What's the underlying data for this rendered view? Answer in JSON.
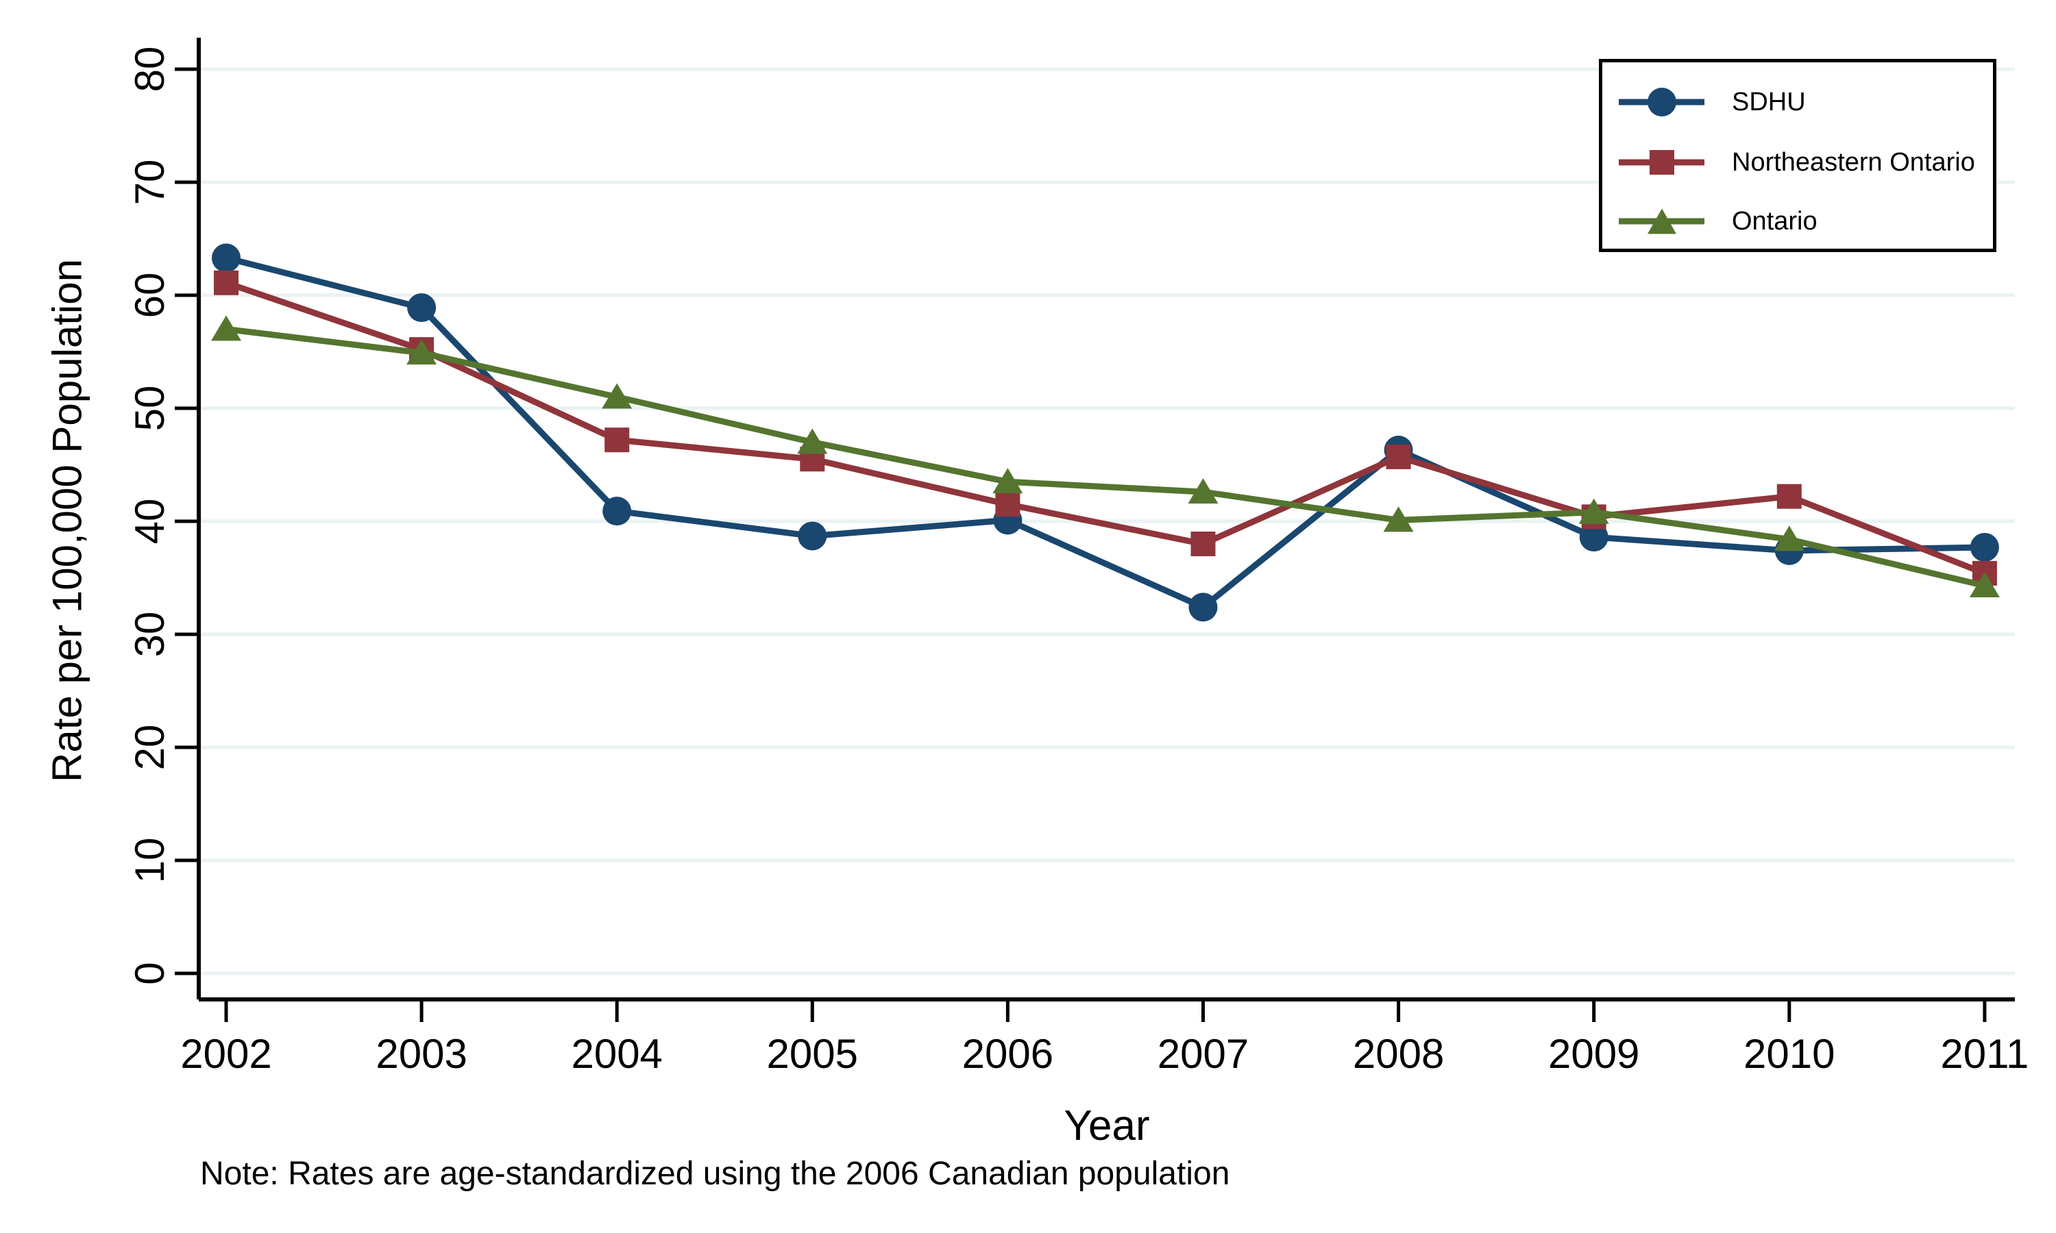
{
  "figure": {
    "note": "Note: Rates are age-standardized using the 2006 Canadian population"
  },
  "chart_data": {
    "type": "line",
    "title": "",
    "xlabel": "Year",
    "ylabel": "Rate per 100,000 Population",
    "x": [
      2002,
      2003,
      2004,
      2005,
      2006,
      2007,
      2008,
      2009,
      2010,
      2011
    ],
    "yticks": [
      0,
      10,
      20,
      30,
      40,
      50,
      60,
      70,
      80
    ],
    "ylim": [
      0,
      80
    ],
    "grid": "horizontal",
    "gridline_color": "#eaf2f3",
    "axis_color": "#000000",
    "legend_position": "top-right",
    "series": [
      {
        "name": "SDHU",
        "color": "#1a476f",
        "marker": "circle",
        "values": [
          63.3,
          58.9,
          40.9,
          38.7,
          40.1,
          32.4,
          46.3,
          38.6,
          37.4,
          37.7
        ]
      },
      {
        "name": "Northeastern Ontario",
        "color": "#90353b",
        "marker": "square",
        "values": [
          61.1,
          55.2,
          47.2,
          45.5,
          41.5,
          38.0,
          45.7,
          40.4,
          42.2,
          35.4
        ]
      },
      {
        "name": "Ontario",
        "color": "#55752f",
        "marker": "triangle",
        "values": [
          57.0,
          54.9,
          51.0,
          47.0,
          43.5,
          42.6,
          40.1,
          40.8,
          38.4,
          34.3
        ]
      }
    ]
  }
}
